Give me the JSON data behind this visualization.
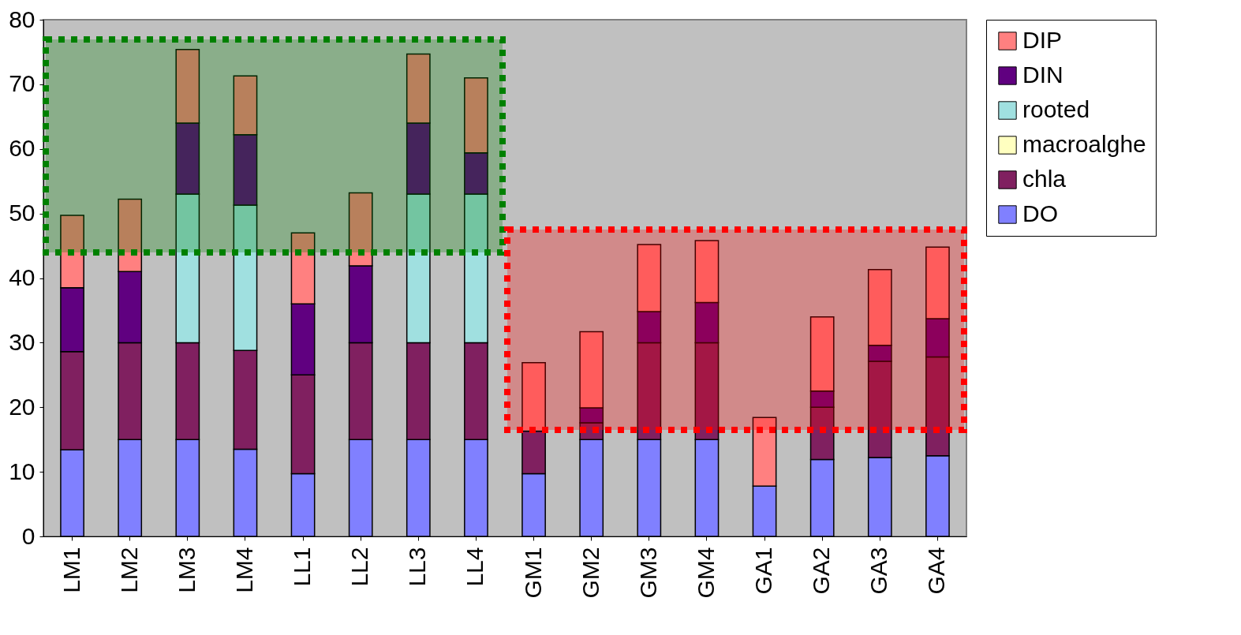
{
  "chart_data": {
    "type": "bar",
    "stacked": true,
    "categories": [
      "LM1",
      "LM2",
      "LM3",
      "LM4",
      "LL1",
      "LL2",
      "LL3",
      "LL4",
      "GM1",
      "GM2",
      "GM3",
      "GM4",
      "GA1",
      "GA2",
      "GA3",
      "GA4"
    ],
    "series": [
      {
        "name": "DO",
        "color": "#8080ff",
        "values": [
          13.4,
          15,
          15,
          13.5,
          9.7,
          15,
          15,
          15,
          9.7,
          15,
          15,
          15,
          7.8,
          11.9,
          12.2,
          12.5
        ]
      },
      {
        "name": "chla",
        "color": "#802060",
        "values": [
          15.2,
          15,
          15,
          15.3,
          15.3,
          15,
          15,
          15,
          6.6,
          2.6,
          15,
          15,
          null,
          8.1,
          14.9,
          15.3
        ]
      },
      {
        "name": "macroalghe",
        "color": "#ffffc0",
        "values": [
          null,
          null,
          null,
          null,
          null,
          null,
          null,
          null,
          null,
          null,
          null,
          null,
          null,
          null,
          null,
          null
        ]
      },
      {
        "name": "rooted",
        "color": "#a0e0e0",
        "values": [
          null,
          null,
          23,
          22.5,
          null,
          null,
          23,
          23,
          null,
          null,
          null,
          null,
          null,
          null,
          null,
          null
        ]
      },
      {
        "name": "DIN",
        "color": "#600080",
        "values": [
          9.9,
          11,
          11,
          10.9,
          11,
          11.9,
          11,
          6.4,
          null,
          2.3,
          4.8,
          6.2,
          null,
          2.5,
          2.5,
          5.9
        ]
      },
      {
        "name": "DIP",
        "color": "#ff8080",
        "values": [
          11.2,
          11.2,
          11.4,
          9.1,
          11,
          11.3,
          10.7,
          11.6,
          10.6,
          11.8,
          10.4,
          9.6,
          10.6,
          11.5,
          11.7,
          11.1
        ]
      }
    ],
    "ylim": [
      0,
      80
    ],
    "yticks": [
      0,
      10,
      20,
      30,
      40,
      50,
      60,
      70,
      80
    ],
    "grid": false,
    "legend": "right"
  }
}
